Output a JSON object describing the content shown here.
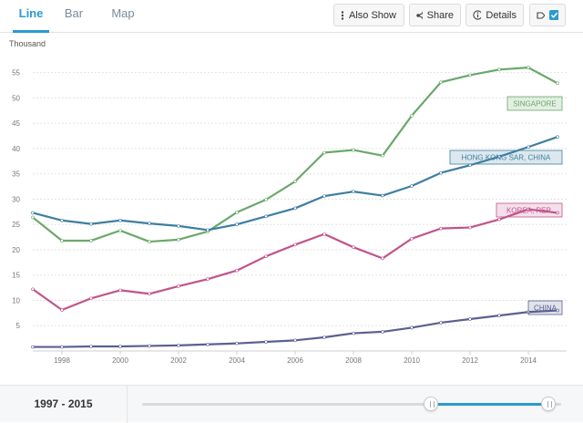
{
  "tabs": [
    {
      "label": "Line",
      "active": true
    },
    {
      "label": "Bar",
      "active": false
    },
    {
      "label": "Map",
      "active": false
    }
  ],
  "toolbar": {
    "also_show_label": "Also Show",
    "share_label": "Share",
    "details_label": "Details",
    "label_toggle_checked": true
  },
  "range": {
    "label": "1997 - 2015",
    "start_fraction": 0.69,
    "end_fraction": 0.97
  },
  "colors": {
    "accent": "#2a9bd0",
    "singapore": "#6aa86a",
    "hongkong": "#3f7ea1",
    "korea": "#c2538c",
    "china": "#5a6190"
  },
  "chart_data": {
    "type": "line",
    "unit_label": "Thousand",
    "x": [
      1997,
      1998,
      1999,
      2000,
      2001,
      2002,
      2003,
      2004,
      2005,
      2006,
      2007,
      2008,
      2009,
      2010,
      2011,
      2012,
      2013,
      2014,
      2015
    ],
    "x_ticks": [
      "1998",
      "2000",
      "2002",
      "2004",
      "2006",
      "2008",
      "2010",
      "2012",
      "2014"
    ],
    "y_ticks": [
      "5",
      "10",
      "15",
      "20",
      "25",
      "30",
      "35",
      "40",
      "45",
      "50",
      "55"
    ],
    "ylim": [
      0,
      58
    ],
    "grid": true,
    "series": [
      {
        "name": "SINGAPORE",
        "color": "#6aa86a",
        "values": [
          26.4,
          21.8,
          21.8,
          23.8,
          21.6,
          22.0,
          23.6,
          27.4,
          29.9,
          33.5,
          39.2,
          39.7,
          38.6,
          46.5,
          53.1,
          54.5,
          55.6,
          56.0,
          52.9
        ]
      },
      {
        "name": "HONG KONG SAR, CHINA",
        "color": "#3f7ea1",
        "values": [
          27.3,
          25.8,
          25.1,
          25.8,
          25.2,
          24.7,
          23.9,
          25.0,
          26.6,
          28.2,
          30.6,
          31.5,
          30.7,
          32.6,
          35.2,
          36.7,
          38.4,
          40.3,
          42.3
        ]
      },
      {
        "name": "KOREA, REP.",
        "color": "#c2538c",
        "values": [
          12.2,
          8.1,
          10.4,
          12.0,
          11.3,
          12.8,
          14.2,
          15.9,
          18.7,
          21.0,
          23.1,
          20.5,
          18.3,
          22.2,
          24.2,
          24.4,
          26.0,
          28.0,
          27.3
        ]
      },
      {
        "name": "CHINA",
        "color": "#5a6190",
        "values": [
          0.8,
          0.8,
          0.9,
          0.9,
          1.0,
          1.1,
          1.3,
          1.5,
          1.8,
          2.1,
          2.7,
          3.5,
          3.8,
          4.6,
          5.6,
          6.3,
          7.0,
          7.7,
          8.0
        ]
      }
    ],
    "end_labels": [
      "SINGAPORE",
      "HONG KONG SAR, CHINA",
      "KOREA, REP.",
      "CHINA"
    ]
  }
}
